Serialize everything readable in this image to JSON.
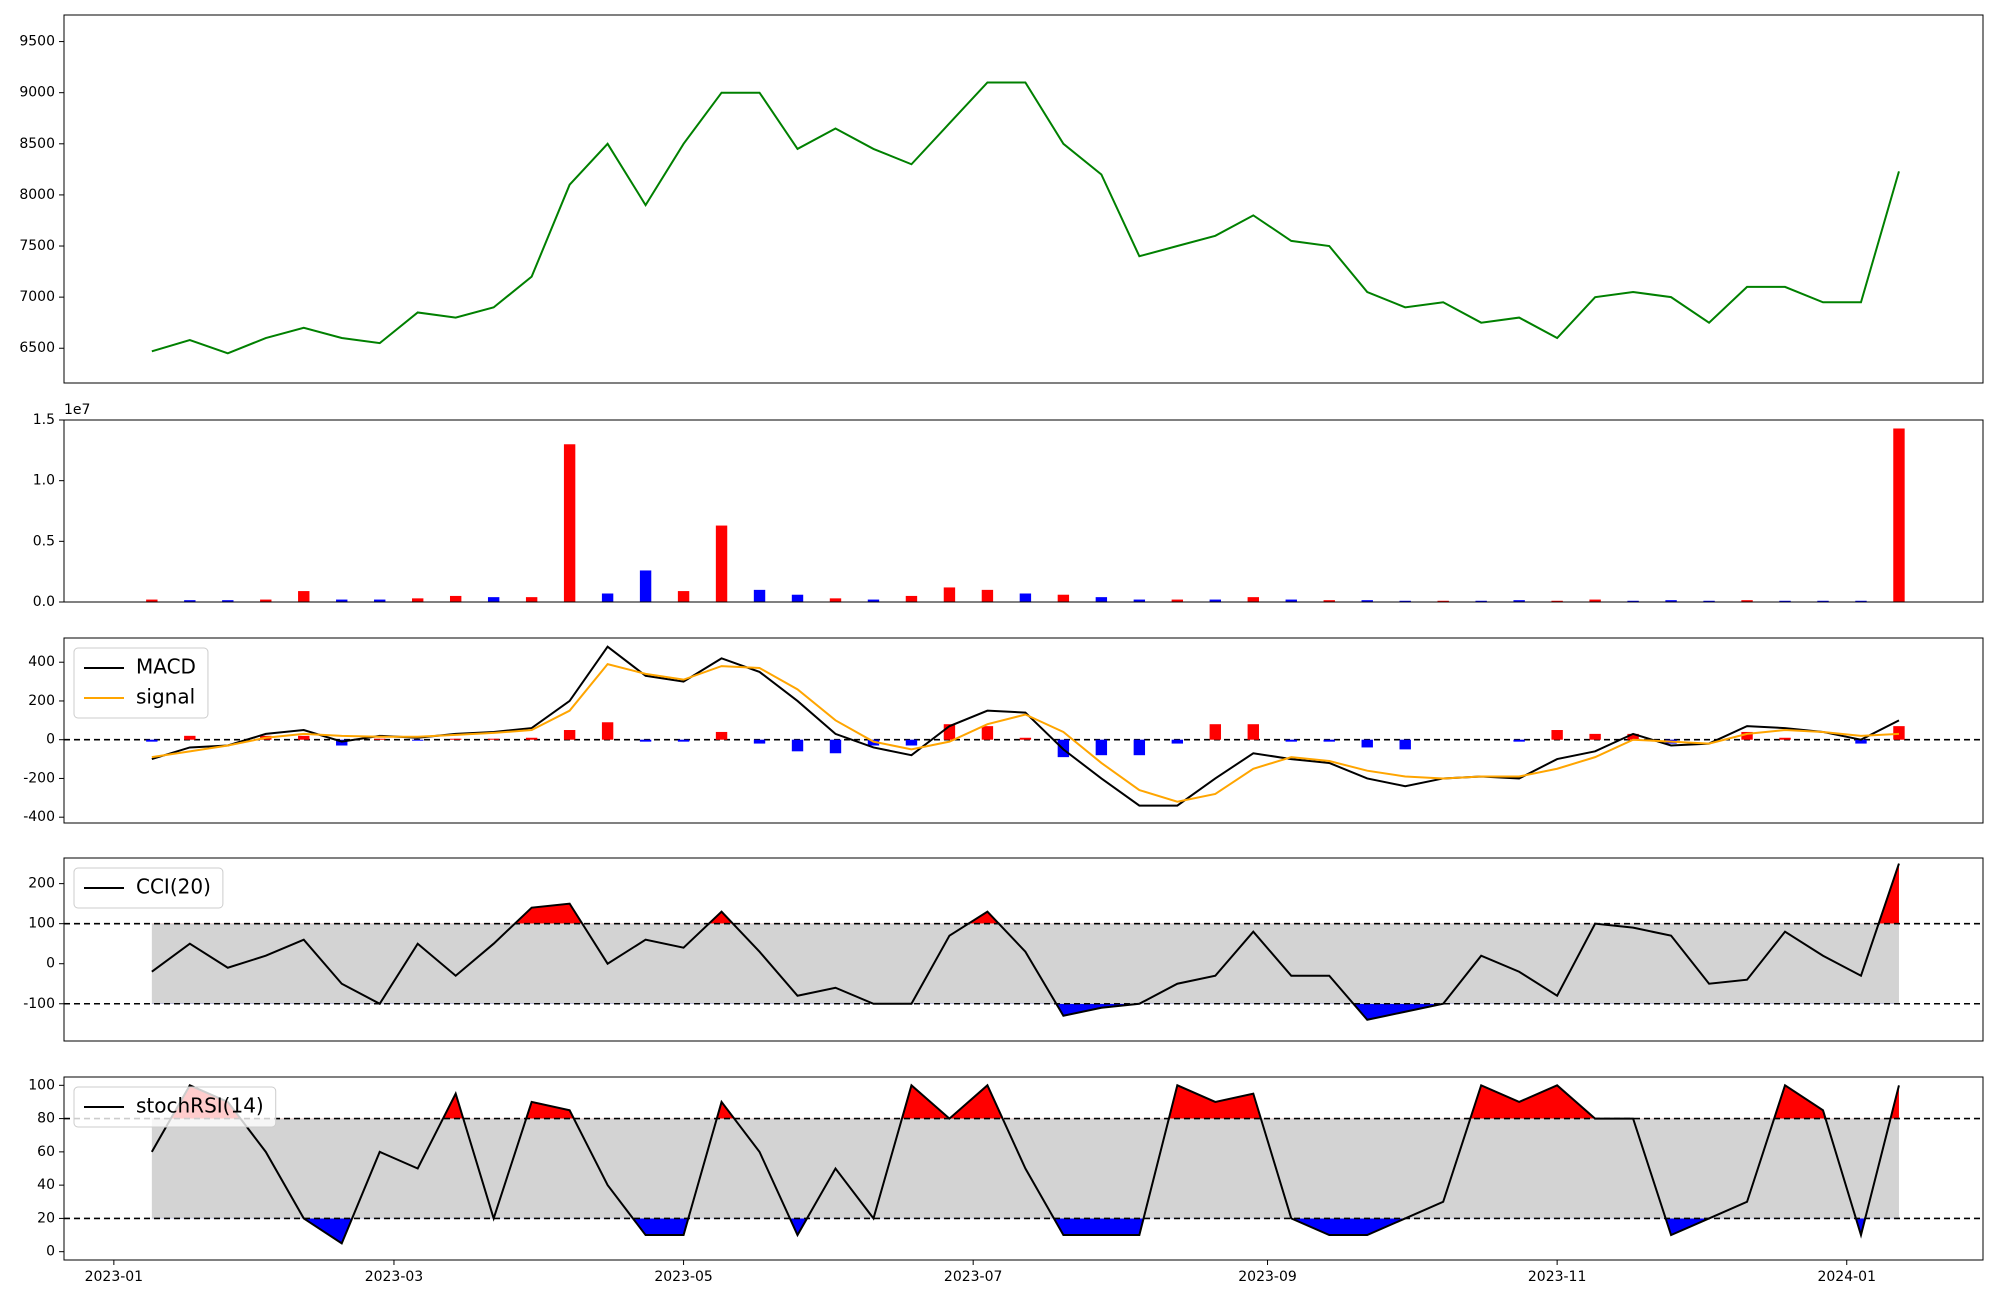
{
  "chart_data": [
    {
      "type": "line",
      "x": [
        19366,
        19374,
        19382,
        19390,
        19398,
        19406,
        19414,
        19422,
        19430,
        19438,
        19446,
        19454,
        19462,
        19470,
        19478,
        19486,
        19494,
        19502,
        19510,
        19518,
        19526,
        19534,
        19542,
        19550,
        19558,
        19566,
        19574,
        19582,
        19590,
        19598,
        19606,
        19614,
        19622,
        19630,
        19638,
        19646,
        19654,
        19662,
        19670,
        19678,
        19686,
        19694,
        19702,
        19710,
        19718,
        19726,
        19734
      ],
      "series": [
        {
          "color": "green",
          "values": [
            6470,
            6580,
            6450,
            6600,
            6700,
            6600,
            6550,
            6850,
            6800,
            6900,
            7200,
            8100,
            8500,
            7900,
            8500,
            9000,
            9000,
            8450,
            8650,
            8450,
            8300,
            8700,
            9100,
            9100,
            8500,
            8200,
            7400,
            7500,
            7600,
            7800,
            7550,
            7500,
            7050,
            6900,
            6950,
            6750,
            6800,
            6600,
            7000,
            7050,
            7000,
            6750,
            7100,
            7100,
            6950,
            6950,
            8230
          ]
        }
      ],
      "xlim": [
        19347.5,
        19751.7
      ],
      "ylim": [
        6160,
        9760
      ],
      "yticks": [
        6500,
        7000,
        7500,
        8000,
        8500,
        9000,
        9500
      ]
    },
    {
      "type": "bar",
      "x": [
        19366,
        19374,
        19382,
        19390,
        19398,
        19406,
        19414,
        19422,
        19430,
        19438,
        19446,
        19454,
        19462,
        19470,
        19478,
        19486,
        19494,
        19502,
        19510,
        19518,
        19526,
        19534,
        19542,
        19550,
        19558,
        19566,
        19574,
        19582,
        19590,
        19598,
        19606,
        19614,
        19622,
        19630,
        19638,
        19646,
        19654,
        19662,
        19670,
        19678,
        19686,
        19694,
        19702,
        19710,
        19718,
        19726,
        19734
      ],
      "values": [
        200000,
        150000,
        150000,
        200000,
        900000,
        200000,
        200000,
        300000,
        500000,
        400000,
        400000,
        13000000,
        700000,
        2600000,
        900000,
        6300000,
        1000000,
        600000,
        300000,
        200000,
        500000,
        1200000,
        1000000,
        700000,
        600000,
        400000,
        200000,
        200000,
        200000,
        400000,
        200000,
        150000,
        150000,
        100000,
        100000,
        100000,
        150000,
        100000,
        200000,
        100000,
        150000,
        100000,
        150000,
        100000,
        100000,
        100000,
        14300000
      ],
      "colors": [
        "red",
        "blue",
        "blue",
        "red",
        "red",
        "blue",
        "blue",
        "red",
        "red",
        "blue",
        "red",
        "red",
        "blue",
        "blue",
        "red",
        "red",
        "blue",
        "blue",
        "red",
        "blue",
        "red",
        "red",
        "red",
        "blue",
        "red",
        "blue",
        "blue",
        "red",
        "blue",
        "red",
        "blue",
        "red",
        "blue",
        "blue",
        "red",
        "blue",
        "blue",
        "red",
        "red",
        "blue",
        "blue",
        "blue",
        "red",
        "blue",
        "blue",
        "blue",
        "red"
      ],
      "offset_label": "1e7",
      "xlim": [
        19347.5,
        19751.7
      ],
      "ylim": [
        0,
        15000000
      ],
      "yticks": [
        {
          "value": 0,
          "label": "0.0"
        },
        {
          "value": 5000000,
          "label": "0.5"
        },
        {
          "value": 10000000,
          "label": "1.0"
        },
        {
          "value": 15000000,
          "label": "1.5"
        }
      ]
    },
    {
      "type": "line",
      "x": [
        19366,
        19374,
        19382,
        19390,
        19398,
        19406,
        19414,
        19422,
        19430,
        19438,
        19446,
        19454,
        19462,
        19470,
        19478,
        19486,
        19494,
        19502,
        19510,
        19518,
        19526,
        19534,
        19542,
        19550,
        19558,
        19566,
        19574,
        19582,
        19590,
        19598,
        19606,
        19614,
        19622,
        19630,
        19638,
        19646,
        19654,
        19662,
        19670,
        19678,
        19686,
        19694,
        19702,
        19710,
        19718,
        19726,
        19734
      ],
      "series": [
        {
          "name": "MACD",
          "color": "black",
          "values": [
            -100,
            -40,
            -30,
            30,
            50,
            -10,
            20,
            10,
            30,
            40,
            60,
            200,
            480,
            330,
            300,
            420,
            350,
            200,
            30,
            -40,
            -80,
            70,
            150,
            140,
            -50,
            -200,
            -340,
            -340,
            -200,
            -70,
            -100,
            -120,
            -200,
            -240,
            -200,
            -190,
            -200,
            -100,
            -60,
            30,
            -30,
            -20,
            70,
            60,
            40,
            0,
            100
          ]
        },
        {
          "name": "signal",
          "color": "orange",
          "values": [
            -90,
            -60,
            -30,
            10,
            30,
            20,
            15,
            15,
            25,
            35,
            50,
            150,
            390,
            340,
            310,
            380,
            370,
            260,
            100,
            -10,
            -50,
            -10,
            80,
            130,
            40,
            -120,
            -260,
            -320,
            -280,
            -150,
            -90,
            -110,
            -160,
            -190,
            -200,
            -190,
            -190,
            -150,
            -90,
            0,
            -10,
            -20,
            30,
            50,
            40,
            20,
            30
          ]
        }
      ],
      "histogram": {
        "pos_color": "red",
        "neg_color": "blue",
        "values": [
          -10,
          20,
          0,
          20,
          20,
          -30,
          5,
          -5,
          5,
          5,
          10,
          50,
          90,
          -10,
          -10,
          40,
          -20,
          -60,
          -70,
          -30,
          -30,
          80,
          70,
          10,
          -90,
          -80,
          -80,
          -20,
          80,
          80,
          -10,
          -10,
          -40,
          -50,
          0,
          0,
          -10,
          50,
          30,
          30,
          -20,
          0,
          40,
          10,
          0,
          -20,
          70
        ]
      },
      "hlines": [
        0
      ],
      "legend": "upper left",
      "xlim": [
        19347.5,
        19751.7
      ],
      "ylim": [
        -430,
        525
      ],
      "yticks": [
        -400,
        -200,
        0,
        200,
        400
      ]
    },
    {
      "type": "line",
      "x": [
        19366,
        19374,
        19382,
        19390,
        19398,
        19406,
        19414,
        19422,
        19430,
        19438,
        19446,
        19454,
        19462,
        19470,
        19478,
        19486,
        19494,
        19502,
        19510,
        19518,
        19526,
        19534,
        19542,
        19550,
        19558,
        19566,
        19574,
        19582,
        19590,
        19598,
        19606,
        19614,
        19622,
        19630,
        19638,
        19646,
        19654,
        19662,
        19670,
        19678,
        19686,
        19694,
        19702,
        19710,
        19718,
        19726,
        19734
      ],
      "series": [
        {
          "name": "CCI(20)",
          "color": "black",
          "values": [
            -20,
            50,
            -10,
            20,
            60,
            -50,
            -100,
            50,
            -30,
            50,
            140,
            150,
            0,
            60,
            40,
            130,
            30,
            -80,
            -60,
            -100,
            -100,
            70,
            130,
            30,
            -130,
            -110,
            -100,
            -50,
            -30,
            80,
            -30,
            -30,
            -140,
            -120,
            -100,
            20,
            -20,
            -80,
            100,
            90,
            70,
            -50,
            -40,
            80,
            20,
            -30,
            250
          ]
        }
      ],
      "bands": {
        "upper": 100,
        "lower": -100,
        "fill": "lightgray",
        "upper_color": "red",
        "lower_color": "blue"
      },
      "legend": "upper left",
      "xlim": [
        19347.5,
        19751.7
      ],
      "ylim": [
        -193,
        264
      ],
      "yticks": [
        -100,
        0,
        100,
        200
      ]
    },
    {
      "type": "line",
      "x": [
        19366,
        19374,
        19382,
        19390,
        19398,
        19406,
        19414,
        19422,
        19430,
        19438,
        19446,
        19454,
        19462,
        19470,
        19478,
        19486,
        19494,
        19502,
        19510,
        19518,
        19526,
        19534,
        19542,
        19550,
        19558,
        19566,
        19574,
        19582,
        19590,
        19598,
        19606,
        19614,
        19622,
        19630,
        19638,
        19646,
        19654,
        19662,
        19670,
        19678,
        19686,
        19694,
        19702,
        19710,
        19718,
        19726,
        19734
      ],
      "series": [
        {
          "name": "stochRSI(14)",
          "color": "black",
          "values": [
            60,
            100,
            90,
            60,
            20,
            5,
            60,
            50,
            95,
            20,
            90,
            85,
            40,
            10,
            10,
            90,
            60,
            10,
            50,
            20,
            100,
            80,
            100,
            50,
            10,
            10,
            10,
            100,
            90,
            95,
            20,
            10,
            10,
            20,
            30,
            100,
            90,
            100,
            80,
            80,
            10,
            20,
            30,
            100,
            85,
            10,
            100
          ]
        }
      ],
      "bands": {
        "upper": 80,
        "lower": 20,
        "fill": "lightgray",
        "upper_color": "red",
        "lower_color": "blue"
      },
      "legend": "upper left",
      "xlim": [
        19347.5,
        19751.7
      ],
      "ylim": [
        -5,
        105
      ],
      "yticks": [
        0,
        20,
        40,
        60,
        80,
        100
      ],
      "xticks": [
        {
          "value": 19358,
          "label": "2023-01"
        },
        {
          "value": 19417,
          "label": "2023-03"
        },
        {
          "value": 19478,
          "label": "2023-05"
        },
        {
          "value": 19539,
          "label": "2023-07"
        },
        {
          "value": 19601,
          "label": "2023-09"
        },
        {
          "value": 19662,
          "label": "2023-11"
        },
        {
          "value": 19723,
          "label": "2024-01"
        }
      ]
    }
  ]
}
